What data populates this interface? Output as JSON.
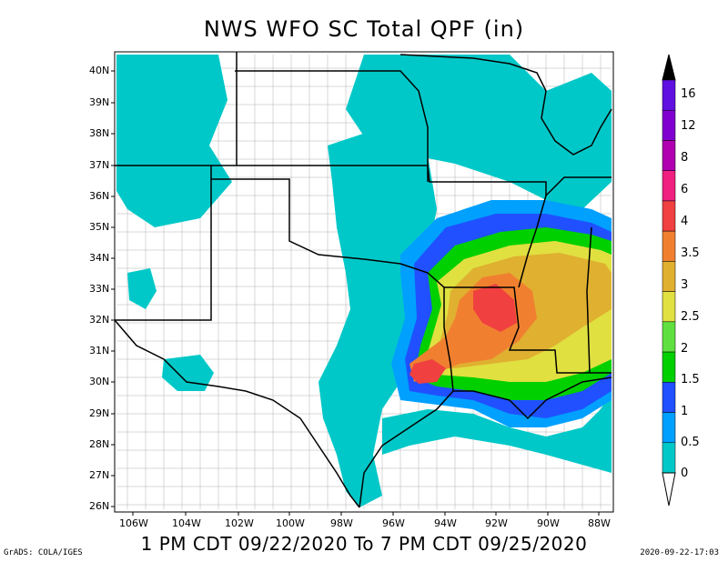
{
  "title": "NWS WFO SC Total QPF (in)",
  "period": "1 PM CDT 09/22/2020 To 7 PM CDT 09/25/2020",
  "credit": "GrADS: COLA/IGES",
  "timestamp": "2020-09-22-17:03",
  "lat_labels": [
    "40N",
    "39N",
    "38N",
    "37N",
    "36N",
    "35N",
    "34N",
    "33N",
    "32N",
    "31N",
    "30N",
    "29N",
    "28N",
    "27N",
    "26N"
  ],
  "lon_labels": [
    "106W",
    "104W",
    "102W",
    "100W",
    "98W",
    "96W",
    "94W",
    "92W",
    "90W",
    "88W"
  ],
  "legend": {
    "levels": [
      "0",
      "0.5",
      "1",
      "1.5",
      "2",
      "2.5",
      "3",
      "3.5",
      "4",
      "6",
      "8",
      "12",
      "16"
    ],
    "colors": [
      "#00c8c8",
      "#00a0ff",
      "#2050ff",
      "#00d000",
      "#60e040",
      "#e0e040",
      "#e0b030",
      "#f08030",
      "#f04040",
      "#f02080",
      "#b000b0",
      "#8000d0",
      "#6010e0"
    ],
    "top_color": "#000000"
  }
}
